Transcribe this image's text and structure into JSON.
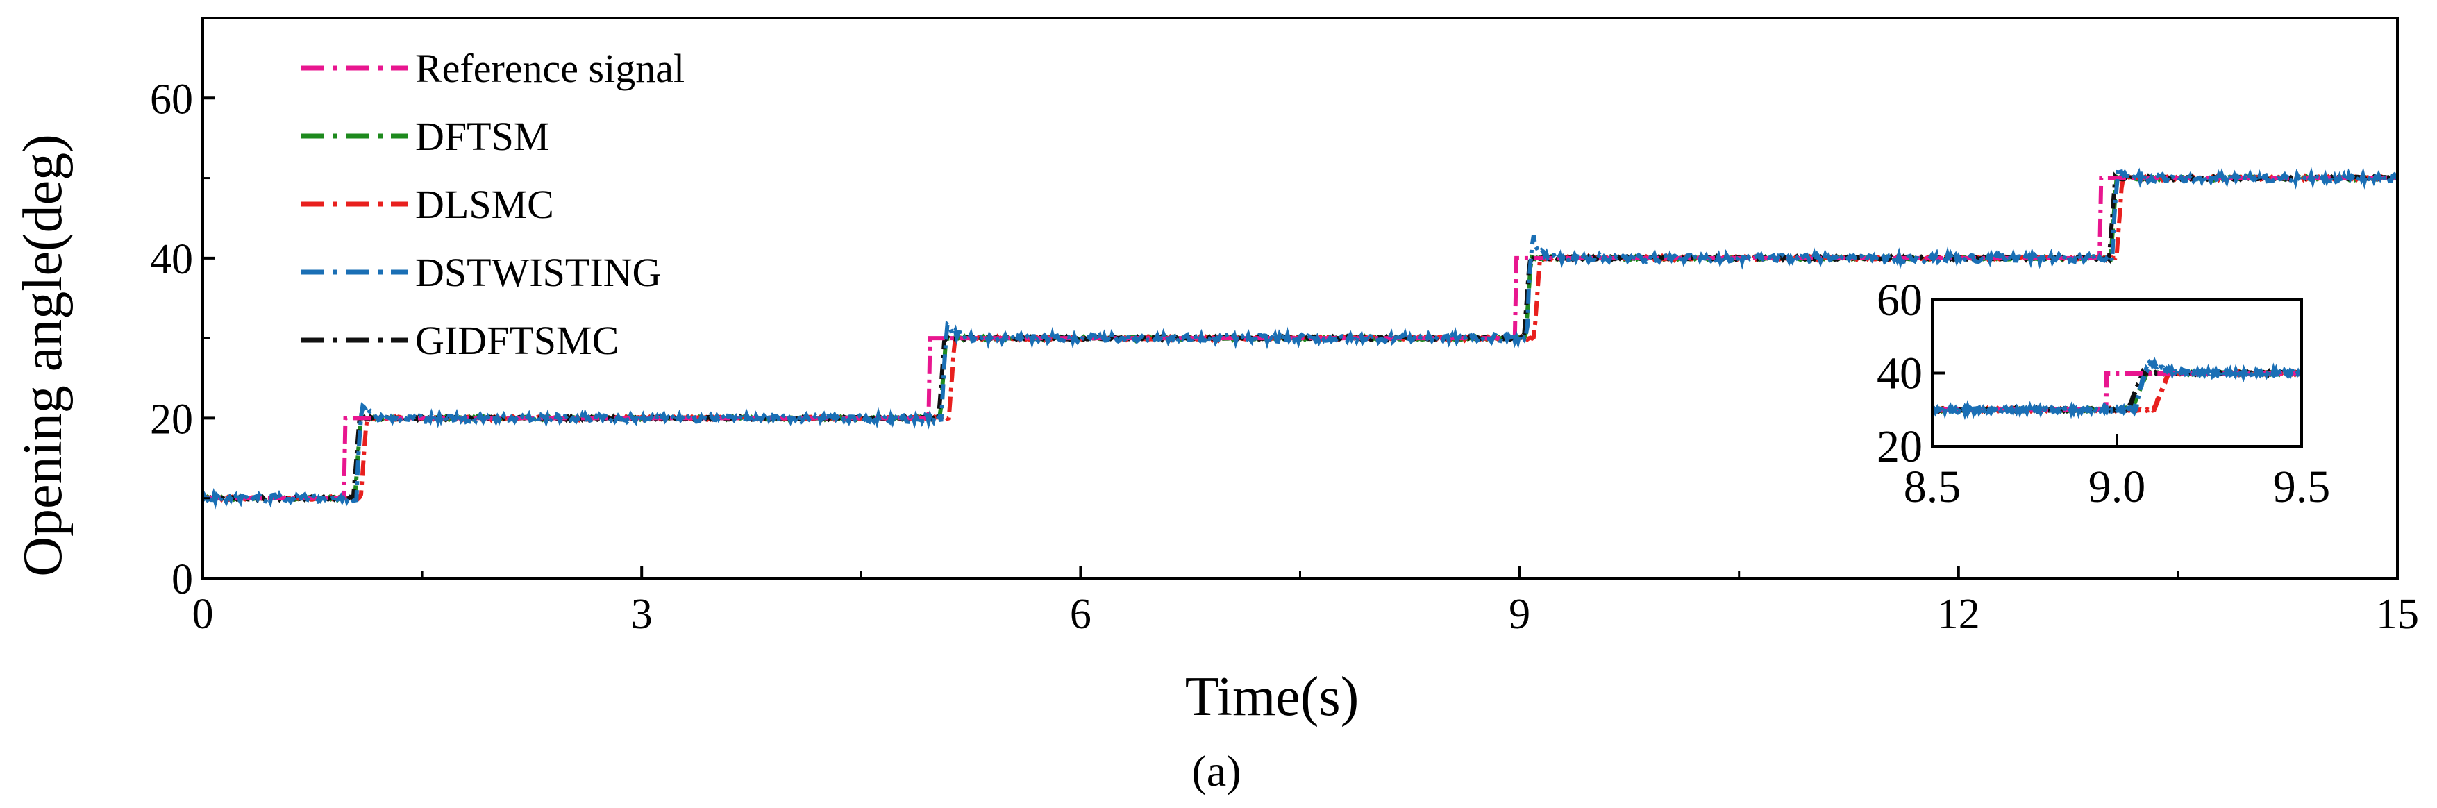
{
  "chart_data": [
    {
      "type": "line",
      "xlabel": "Time(s)",
      "ylabel": "Opening angle(deg)",
      "xlim": [
        0,
        15
      ],
      "ylim": [
        0,
        70
      ],
      "xticks": [
        "0",
        "3",
        "6",
        "9",
        "12",
        "15"
      ],
      "yticks": [
        "0",
        "20",
        "40",
        "60"
      ],
      "legend_position": "top-left",
      "grid": false,
      "reference_steps": [
        {
          "t_start": 0,
          "t_end": 1,
          "value": 10
        },
        {
          "t_start": 1,
          "t_end": 5,
          "value": 20
        },
        {
          "t_start": 5,
          "t_end": 9,
          "value": 30
        },
        {
          "t_start": 9,
          "t_end": 13,
          "value": 40
        },
        {
          "t_start": 13,
          "t_end": 15,
          "value": 50
        }
      ],
      "series": [
        {
          "name": "Reference signal",
          "color": "#e8168f",
          "step_times": [
            0.97,
            4.97,
            8.97,
            12.97
          ],
          "x": [
            0,
            1,
            5,
            9,
            13,
            15
          ],
          "values": [
            10,
            20,
            30,
            40,
            50,
            50
          ]
        },
        {
          "name": "DFTSM",
          "color": "#1e8a1e",
          "step_times": [
            1.04,
            5.04,
            9.04,
            13.04
          ],
          "overshoot": [
            0,
            0,
            0,
            0
          ],
          "x": [
            0,
            1,
            5,
            9,
            13,
            15
          ],
          "values": [
            10,
            20,
            30,
            40,
            50,
            50
          ]
        },
        {
          "name": "DLSMC",
          "color": "#e8201e",
          "step_times": [
            1.08,
            5.1,
            9.1,
            13.08
          ],
          "overshoot": [
            0,
            0,
            0,
            0
          ],
          "x": [
            0,
            1,
            5,
            9,
            13,
            15
          ],
          "values": [
            10,
            20,
            30,
            40,
            50,
            50
          ]
        },
        {
          "name": "DSTWISTING",
          "color": "#1a6fb5",
          "step_times": [
            1.05,
            5.05,
            9.05,
            13.05
          ],
          "overshoot": [
            25,
            35,
            47,
            53
          ],
          "x": [
            0,
            1,
            5,
            9,
            13,
            15
          ],
          "values": [
            10,
            20,
            30,
            40,
            50,
            50
          ]
        },
        {
          "name": "GIDFTSMC",
          "color": "#111111",
          "step_times": [
            1.03,
            5.03,
            9.03,
            13.03
          ],
          "overshoot": [
            0,
            0,
            0,
            0
          ],
          "x": [
            0,
            1,
            5,
            9,
            13,
            15
          ],
          "values": [
            10,
            20,
            30,
            40,
            50,
            50
          ]
        }
      ],
      "caption": "(a)"
    },
    {
      "type": "line",
      "inset": true,
      "xlim": [
        8.5,
        9.5
      ],
      "ylim": [
        20,
        60
      ],
      "xticks": [
        "8.5",
        "9.0",
        "9.5"
      ],
      "yticks": [
        "20",
        "40",
        "60"
      ],
      "series_from_main": true
    }
  ]
}
